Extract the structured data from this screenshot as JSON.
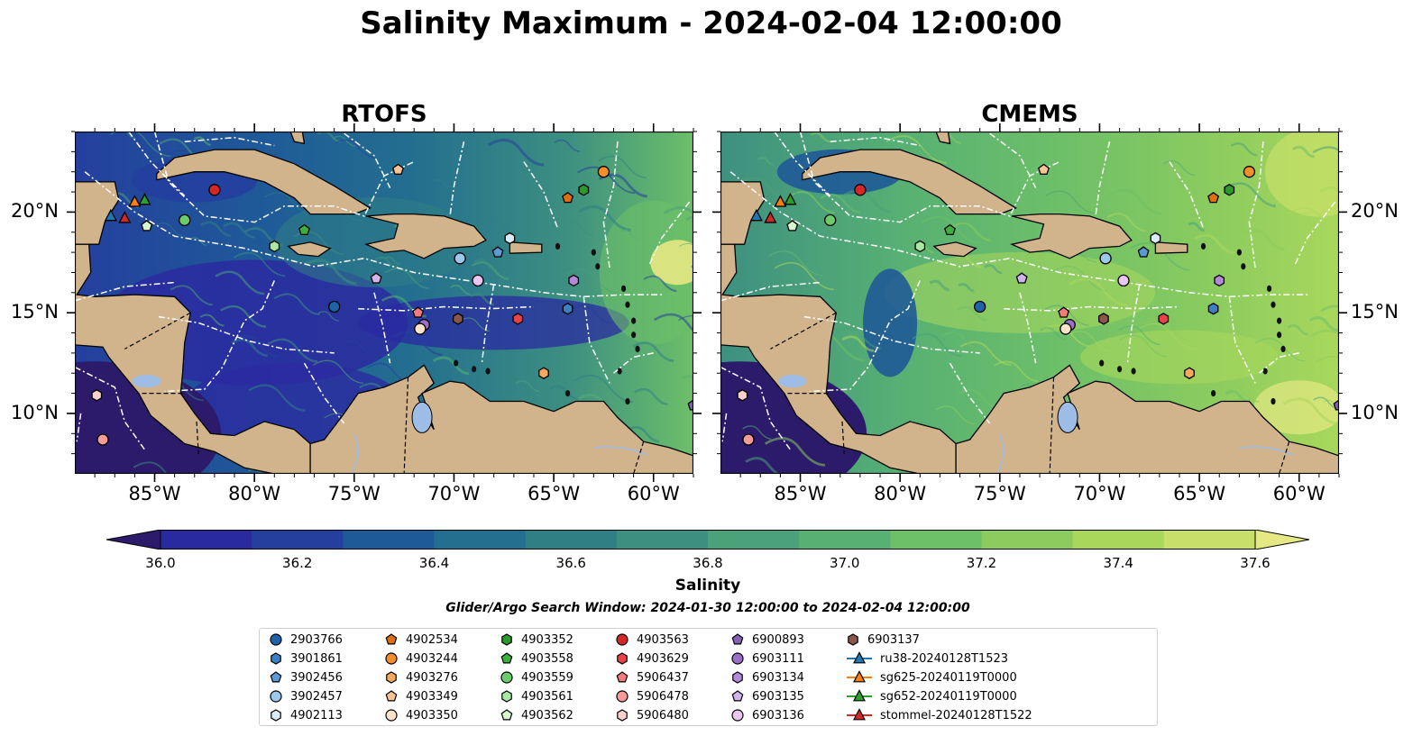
{
  "title": "Salinity Maximum - 2024-02-04 12:00:00",
  "panels": [
    {
      "title": "RTOFS"
    },
    {
      "title": "CMEMS"
    }
  ],
  "map_extent": {
    "lon": [
      -89,
      -58
    ],
    "lat": [
      7,
      24
    ]
  },
  "lon_ticks": [
    "85°W",
    "80°W",
    "75°W",
    "70°W",
    "65°W",
    "60°W"
  ],
  "lat_ticks": [
    "20°N",
    "15°N",
    "10°N"
  ],
  "colorbar": {
    "label": "Salinity",
    "ticks": [
      "36.0",
      "36.2",
      "36.4",
      "36.6",
      "36.8",
      "37.0",
      "37.2",
      "37.4",
      "37.6"
    ],
    "range": [
      36.0,
      37.6
    ],
    "colors": [
      "#2c1a6b",
      "#2a2aa0",
      "#243f9e",
      "#1f5a98",
      "#236f8f",
      "#2f8085",
      "#3d9080",
      "#4aa17a",
      "#58b173",
      "#6dbf68",
      "#8ccc5f",
      "#a9d75c",
      "#c8e06a",
      "#e6e883"
    ]
  },
  "search_window": "Glider/Argo Search Window: 2024-01-30 12:00:00 to 2024-02-04 12:00:00",
  "legend": [
    {
      "label": "2903766",
      "marker": "circle",
      "color": "#1f62a8"
    },
    {
      "label": "3901861",
      "marker": "hexagon",
      "color": "#3b80c4"
    },
    {
      "label": "3902456",
      "marker": "pentagon",
      "color": "#5b9bd5"
    },
    {
      "label": "3902457",
      "marker": "circle",
      "color": "#9dc7ec"
    },
    {
      "label": "4902113",
      "marker": "hexagon",
      "color": "#d8ecfb"
    },
    {
      "label": "4902534",
      "marker": "pentagon",
      "color": "#e0700f"
    },
    {
      "label": "4903244",
      "marker": "circle",
      "color": "#f28e2b"
    },
    {
      "label": "4903276",
      "marker": "hexagon",
      "color": "#f6aa5e"
    },
    {
      "label": "4903349",
      "marker": "pentagon",
      "color": "#fac392"
    },
    {
      "label": "4903350",
      "marker": "circle",
      "color": "#fde3c8"
    },
    {
      "label": "4903352",
      "marker": "hexagon",
      "color": "#2a9a2a"
    },
    {
      "label": "4903558",
      "marker": "pentagon",
      "color": "#3cb03c"
    },
    {
      "label": "4903559",
      "marker": "circle",
      "color": "#6ccc6c"
    },
    {
      "label": "4903561",
      "marker": "hexagon",
      "color": "#a8e8a0"
    },
    {
      "label": "4903562",
      "marker": "pentagon",
      "color": "#d6f7d0"
    },
    {
      "label": "4903563",
      "marker": "circle",
      "color": "#d62728"
    },
    {
      "label": "4903629",
      "marker": "hexagon",
      "color": "#e8424a"
    },
    {
      "label": "5906437",
      "marker": "pentagon",
      "color": "#f27c7c"
    },
    {
      "label": "5906478",
      "marker": "circle",
      "color": "#f59b98"
    },
    {
      "label": "5906480",
      "marker": "hexagon",
      "color": "#fbd0cc"
    },
    {
      "label": "6900893",
      "marker": "pentagon",
      "color": "#8660b6"
    },
    {
      "label": "6903111",
      "marker": "circle",
      "color": "#9a6fc8"
    },
    {
      "label": "6903134",
      "marker": "hexagon",
      "color": "#b48ad8"
    },
    {
      "label": "6903135",
      "marker": "pentagon",
      "color": "#d2b4ec"
    },
    {
      "label": "6903136",
      "marker": "circle",
      "color": "#e8c8f2"
    },
    {
      "label": "6903137",
      "marker": "hexagon",
      "color": "#8c564b"
    },
    {
      "label": "ru38-20240128T1523",
      "marker": "triangle",
      "color": "#1f77b4"
    },
    {
      "label": "sg625-20240119T0000",
      "marker": "triangle",
      "color": "#ff7f0e"
    },
    {
      "label": "sg652-20240119T0000",
      "marker": "triangle",
      "color": "#2ca02c"
    },
    {
      "label": "stommel-20240128T1522",
      "marker": "triangle",
      "color": "#d62728"
    }
  ],
  "platforms": [
    {
      "id": "4903563",
      "lon": -82.0,
      "lat": 21.1
    },
    {
      "id": "4903559",
      "lon": -83.5,
      "lat": 19.6
    },
    {
      "id": "4903562",
      "lon": -85.4,
      "lat": 19.3
    },
    {
      "id": "4903561",
      "lon": -79.0,
      "lat": 18.3
    },
    {
      "id": "4903558",
      "lon": -77.5,
      "lat": 19.1
    },
    {
      "id": "4903349",
      "lon": -72.8,
      "lat": 22.1
    },
    {
      "id": "4903244",
      "lon": -62.5,
      "lat": 22.0
    },
    {
      "id": "4902534",
      "lon": -64.3,
      "lat": 20.7
    },
    {
      "id": "4903352",
      "lon": -63.5,
      "lat": 21.1
    },
    {
      "id": "4902113",
      "lon": -67.2,
      "lat": 18.7
    },
    {
      "id": "3902456",
      "lon": -67.8,
      "lat": 18.0
    },
    {
      "id": "3902457",
      "lon": -69.7,
      "lat": 17.7
    },
    {
      "id": "6903136",
      "lon": -68.8,
      "lat": 16.6
    },
    {
      "id": "6903134",
      "lon": -64.0,
      "lat": 16.6
    },
    {
      "id": "6903135",
      "lon": -73.9,
      "lat": 16.7
    },
    {
      "id": "2903766",
      "lon": -76.0,
      "lat": 15.3
    },
    {
      "id": "5906437",
      "lon": -71.8,
      "lat": 15.0
    },
    {
      "id": "6903111",
      "lon": -71.5,
      "lat": 14.4
    },
    {
      "id": "4903350",
      "lon": -71.7,
      "lat": 14.2
    },
    {
      "id": "6903137",
      "lon": -69.8,
      "lat": 14.7
    },
    {
      "id": "4903629",
      "lon": -66.8,
      "lat": 14.7
    },
    {
      "id": "3901861",
      "lon": -64.3,
      "lat": 15.2
    },
    {
      "id": "4903276",
      "lon": -65.5,
      "lat": 12.0
    },
    {
      "id": "5906480",
      "lon": -87.9,
      "lat": 10.9
    },
    {
      "id": "5906478",
      "lon": -87.6,
      "lat": 8.7
    },
    {
      "id": "6900893",
      "lon": -58.0,
      "lat": 10.4
    },
    {
      "id": "stommel-20240128T1522",
      "lon": -86.5,
      "lat": 19.7
    },
    {
      "id": "sg625-20240119T0000",
      "lon": -86.0,
      "lat": 20.5
    },
    {
      "id": "sg652-20240119T0000",
      "lon": -85.5,
      "lat": 20.6
    },
    {
      "id": "ru38-20240128T1523",
      "lon": -87.2,
      "lat": 19.8
    }
  ]
}
